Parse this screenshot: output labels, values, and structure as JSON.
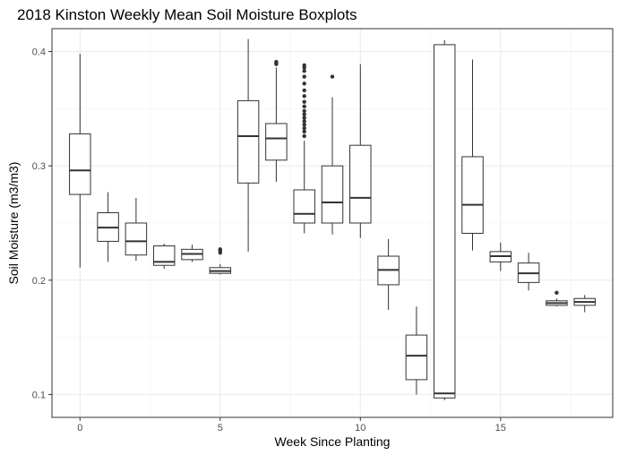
{
  "chart_data": {
    "type": "boxplot",
    "title": "2018 Kinston Weekly Mean Soil Moisture Boxplots",
    "xlabel": "Week Since Planting",
    "ylabel": "Soil Moisture (m3/m3)",
    "xlim": [
      -1,
      19
    ],
    "ylim": [
      0.08,
      0.42
    ],
    "x_ticks": [
      0,
      5,
      10,
      15
    ],
    "y_ticks": [
      0.1,
      0.2,
      0.3,
      0.4
    ],
    "grid": true,
    "legend": "none",
    "boxes": [
      {
        "week": 0,
        "lower_whisker": 0.211,
        "q1": 0.275,
        "median": 0.296,
        "q3": 0.328,
        "upper_whisker": 0.398,
        "outliers": []
      },
      {
        "week": 1,
        "lower_whisker": 0.216,
        "q1": 0.234,
        "median": 0.246,
        "q3": 0.259,
        "upper_whisker": 0.277,
        "outliers": []
      },
      {
        "week": 2,
        "lower_whisker": 0.217,
        "q1": 0.222,
        "median": 0.234,
        "q3": 0.25,
        "upper_whisker": 0.272,
        "outliers": []
      },
      {
        "week": 3,
        "lower_whisker": 0.21,
        "q1": 0.213,
        "median": 0.216,
        "q3": 0.23,
        "upper_whisker": 0.232,
        "outliers": []
      },
      {
        "week": 4,
        "lower_whisker": 0.216,
        "q1": 0.218,
        "median": 0.223,
        "q3": 0.227,
        "upper_whisker": 0.231,
        "outliers": []
      },
      {
        "week": 5,
        "lower_whisker": 0.205,
        "q1": 0.206,
        "median": 0.208,
        "q3": 0.211,
        "upper_whisker": 0.214,
        "outliers": [
          0.224,
          0.226,
          0.227
        ]
      },
      {
        "week": 6,
        "lower_whisker": 0.225,
        "q1": 0.285,
        "median": 0.326,
        "q3": 0.357,
        "upper_whisker": 0.411,
        "outliers": []
      },
      {
        "week": 7,
        "lower_whisker": 0.286,
        "q1": 0.305,
        "median": 0.324,
        "q3": 0.337,
        "upper_whisker": 0.386,
        "outliers": [
          0.389,
          0.39,
          0.391
        ]
      },
      {
        "week": 8,
        "lower_whisker": 0.241,
        "q1": 0.25,
        "median": 0.258,
        "q3": 0.279,
        "upper_whisker": 0.322,
        "outliers": [
          0.326,
          0.33,
          0.333,
          0.336,
          0.339,
          0.342,
          0.345,
          0.348,
          0.352,
          0.356,
          0.361,
          0.366,
          0.372,
          0.378,
          0.383,
          0.386,
          0.388
        ]
      },
      {
        "week": 9,
        "lower_whisker": 0.24,
        "q1": 0.25,
        "median": 0.268,
        "q3": 0.3,
        "upper_whisker": 0.36,
        "outliers": [
          0.378
        ]
      },
      {
        "week": 10,
        "lower_whisker": 0.237,
        "q1": 0.25,
        "median": 0.272,
        "q3": 0.318,
        "upper_whisker": 0.389,
        "outliers": []
      },
      {
        "week": 11,
        "lower_whisker": 0.174,
        "q1": 0.196,
        "median": 0.209,
        "q3": 0.221,
        "upper_whisker": 0.236,
        "outliers": []
      },
      {
        "week": 12,
        "lower_whisker": 0.1,
        "q1": 0.113,
        "median": 0.134,
        "q3": 0.152,
        "upper_whisker": 0.177,
        "outliers": []
      },
      {
        "week": 13,
        "lower_whisker": 0.095,
        "q1": 0.097,
        "median": 0.101,
        "q3": 0.406,
        "upper_whisker": 0.41,
        "outliers": []
      },
      {
        "week": 14,
        "lower_whisker": 0.226,
        "q1": 0.241,
        "median": 0.266,
        "q3": 0.308,
        "upper_whisker": 0.393,
        "outliers": []
      },
      {
        "week": 15,
        "lower_whisker": 0.208,
        "q1": 0.216,
        "median": 0.221,
        "q3": 0.225,
        "upper_whisker": 0.233,
        "outliers": []
      },
      {
        "week": 16,
        "lower_whisker": 0.191,
        "q1": 0.198,
        "median": 0.206,
        "q3": 0.215,
        "upper_whisker": 0.224,
        "outliers": []
      },
      {
        "week": 17,
        "lower_whisker": 0.177,
        "q1": 0.178,
        "median": 0.18,
        "q3": 0.182,
        "upper_whisker": 0.184,
        "outliers": [
          0.189
        ]
      },
      {
        "week": 18,
        "lower_whisker": 0.172,
        "q1": 0.178,
        "median": 0.181,
        "q3": 0.184,
        "upper_whisker": 0.187,
        "outliers": []
      }
    ]
  }
}
